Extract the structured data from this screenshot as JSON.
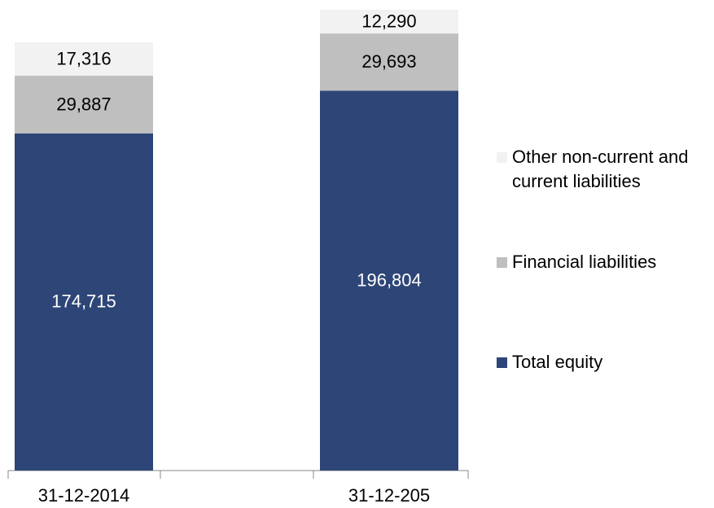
{
  "chart_data": {
    "type": "stacked_bar",
    "categories": [
      "31-12-2014",
      "31-12-205"
    ],
    "series": [
      {
        "name": "Total equity",
        "color": "#2e4677",
        "values": [
          174715,
          196804
        ],
        "value_labels": [
          "174,715",
          "196,804"
        ]
      },
      {
        "name": "Financial liabilities",
        "color": "#bfbfbf",
        "values": [
          29887,
          29693
        ],
        "value_labels": [
          "29,887",
          "29,693"
        ]
      },
      {
        "name": "Other non-current and current liabilities",
        "color": "#f2f2f2",
        "values": [
          17316,
          12290
        ],
        "value_labels": [
          "17,316",
          "12,290"
        ]
      }
    ],
    "legend": "right"
  }
}
